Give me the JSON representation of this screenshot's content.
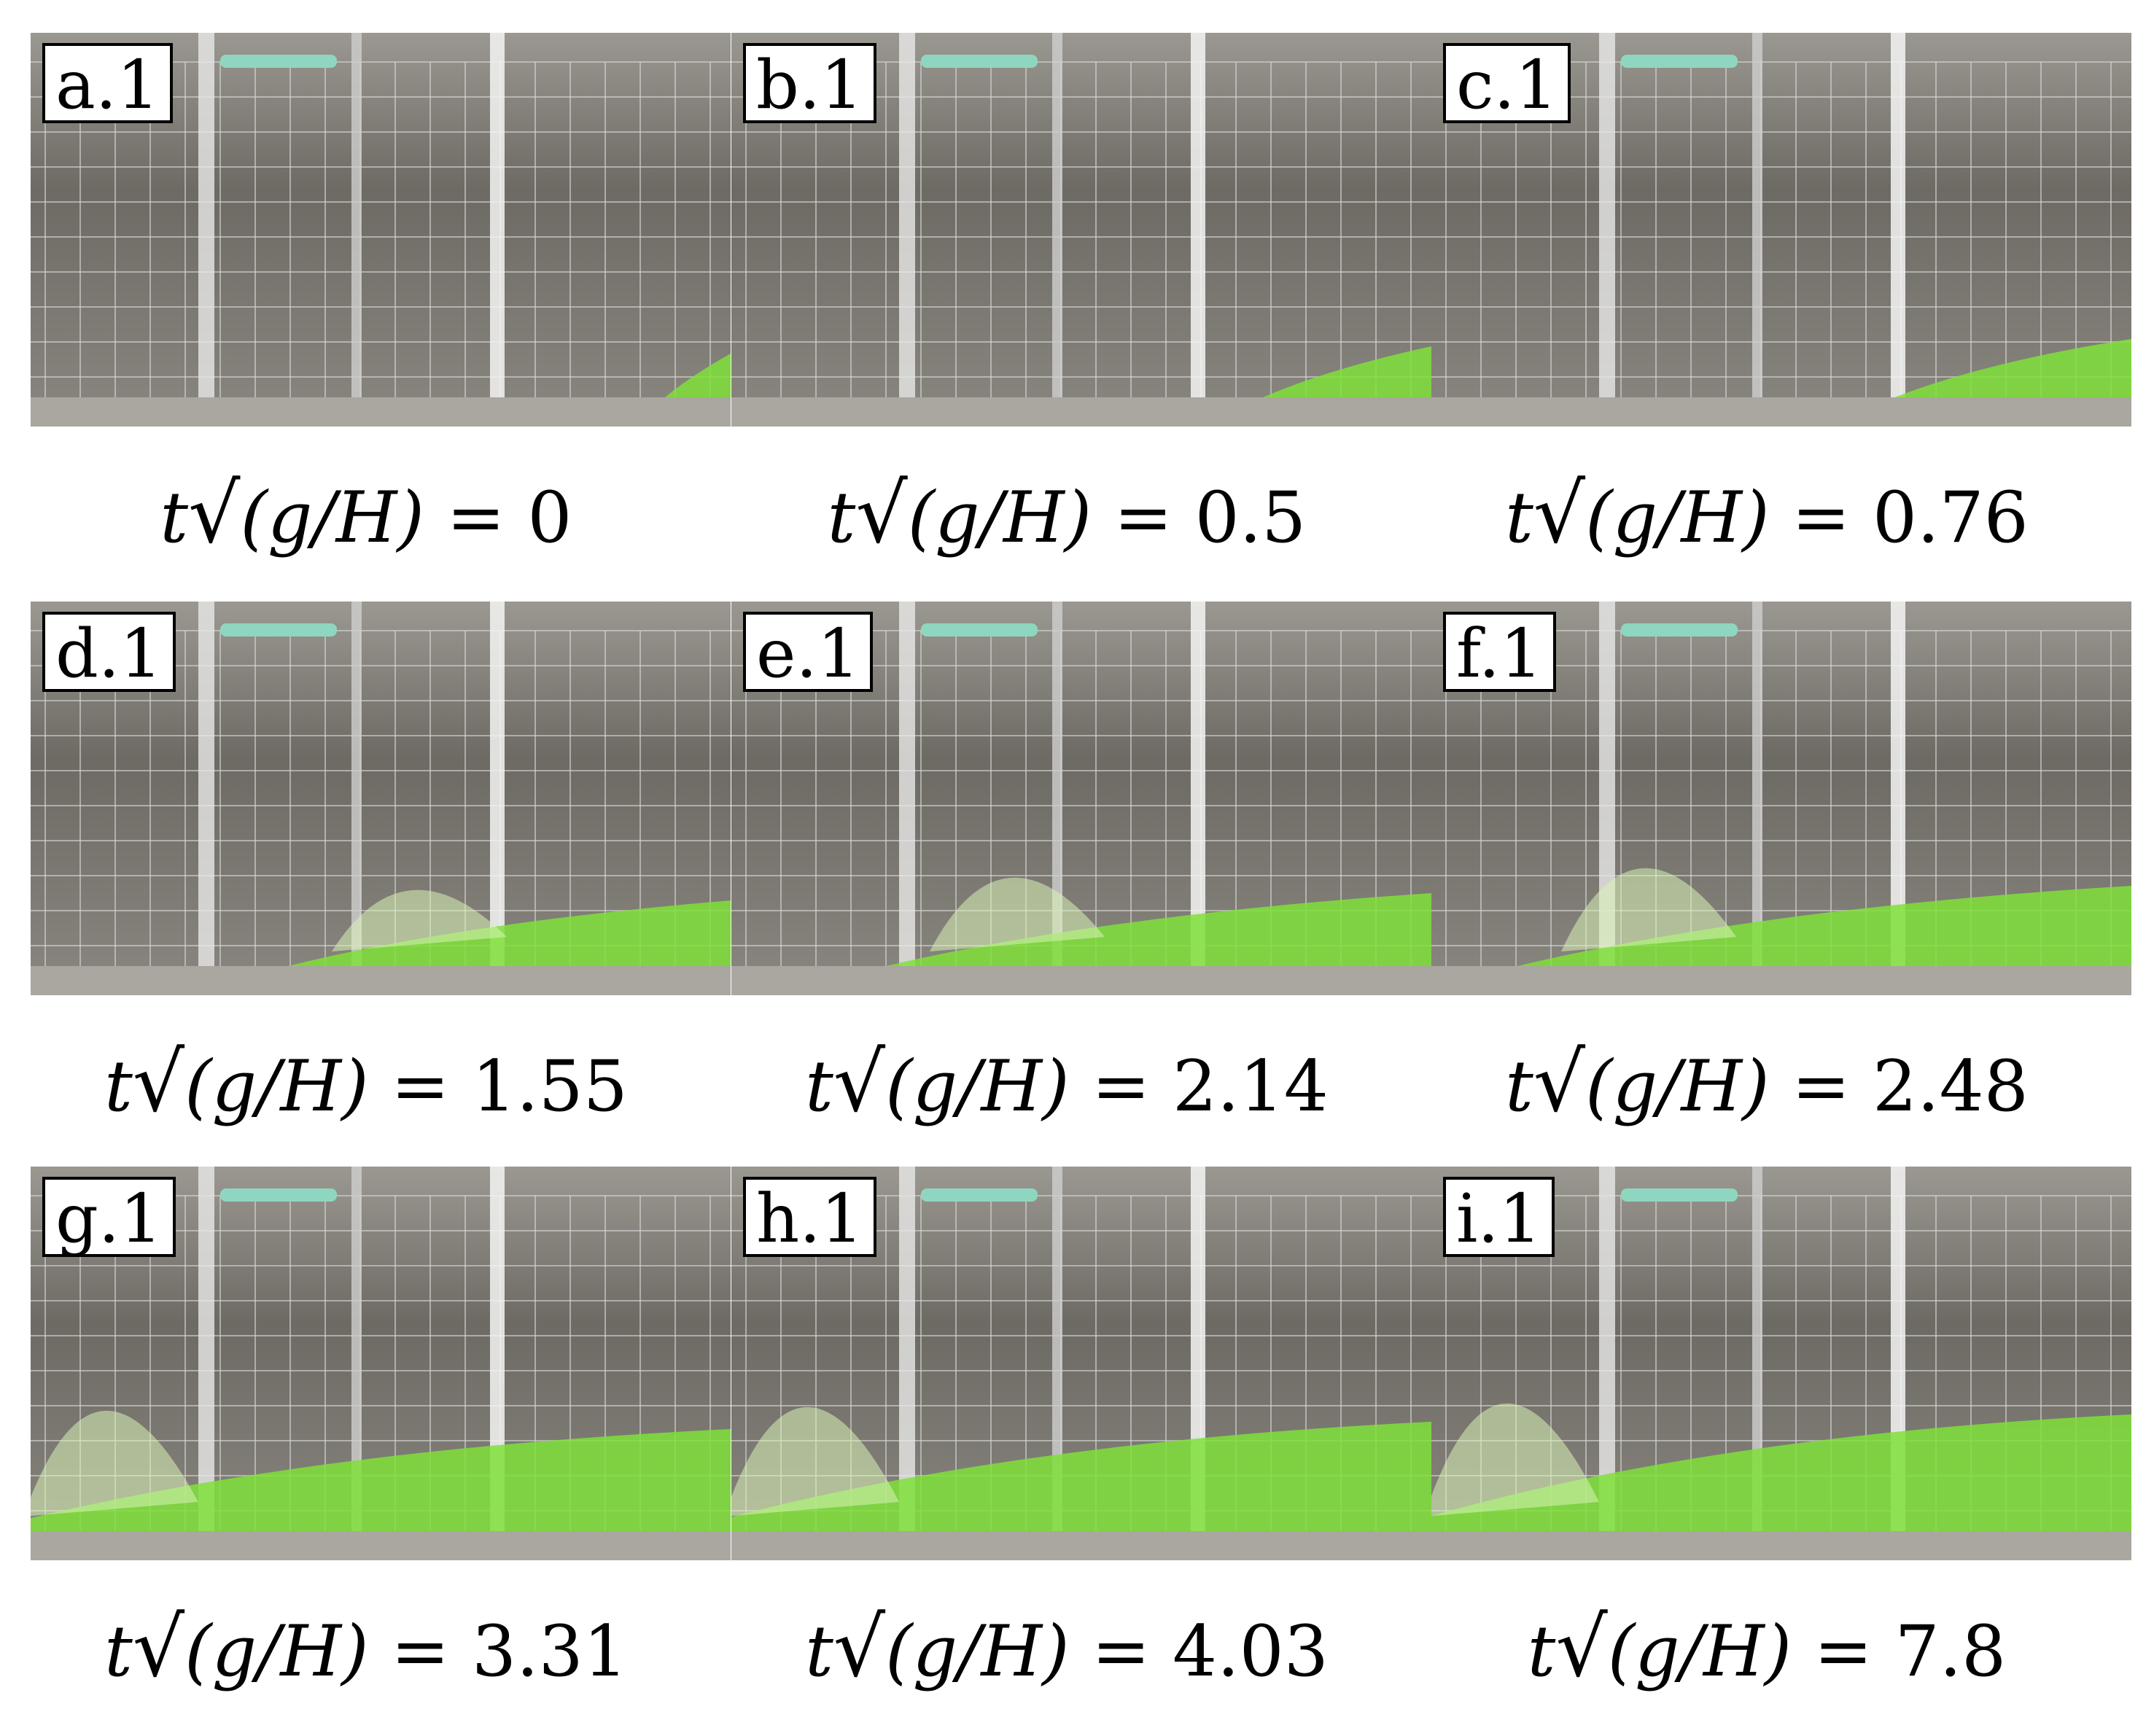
{
  "panels": [
    {
      "label": "a.1",
      "value": "0",
      "green_level": 0.3,
      "spread": 0.0
    },
    {
      "label": "b.1",
      "value": "0.5",
      "green_level": 0.35,
      "spread": 0.15
    },
    {
      "label": "c.1",
      "value": "0.76",
      "green_level": 0.4,
      "spread": 0.25
    },
    {
      "label": "d.1",
      "value": "1.55",
      "green_level": 0.45,
      "spread": 0.55
    },
    {
      "label": "e.1",
      "value": "2.14",
      "green_level": 0.5,
      "spread": 0.7
    },
    {
      "label": "f.1",
      "value": "2.48",
      "green_level": 0.55,
      "spread": 0.8
    },
    {
      "label": "g.1",
      "value": "3.31",
      "green_level": 0.7,
      "spread": 1.0
    },
    {
      "label": "h.1",
      "value": "4.03",
      "green_level": 0.75,
      "spread": 1.0
    },
    {
      "label": "i.1",
      "value": "7.8",
      "green_level": 0.8,
      "spread": 1.0
    }
  ],
  "caption": {
    "prefix": "t",
    "root_symbol": "√",
    "expr": "(g/H)",
    "equals": " = "
  },
  "colors": {
    "liquid": "#7fe03a",
    "grid": "#d8d8d8",
    "tank_bg": "#7a776f"
  }
}
